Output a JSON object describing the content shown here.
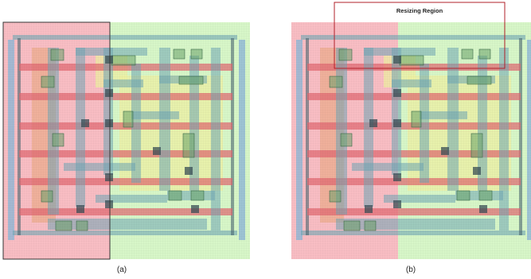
{
  "figure": {
    "panels": [
      {
        "id": "a",
        "caption": "(a)"
      },
      {
        "id": "b",
        "caption": "(b)"
      }
    ],
    "region_label": "Resizing Region",
    "colors": {
      "red_region": "#f7b6bc",
      "green_region": "#d3f5c2",
      "blue_rail": "#8fb6d6",
      "red_bar": "#e0666f",
      "orange_bar": "#e8a57a",
      "teal_wire": "#6fa6b4",
      "yellow_fill": "#eef0a0",
      "via": "#3a4d55",
      "frame": "#b1202a"
    }
  }
}
